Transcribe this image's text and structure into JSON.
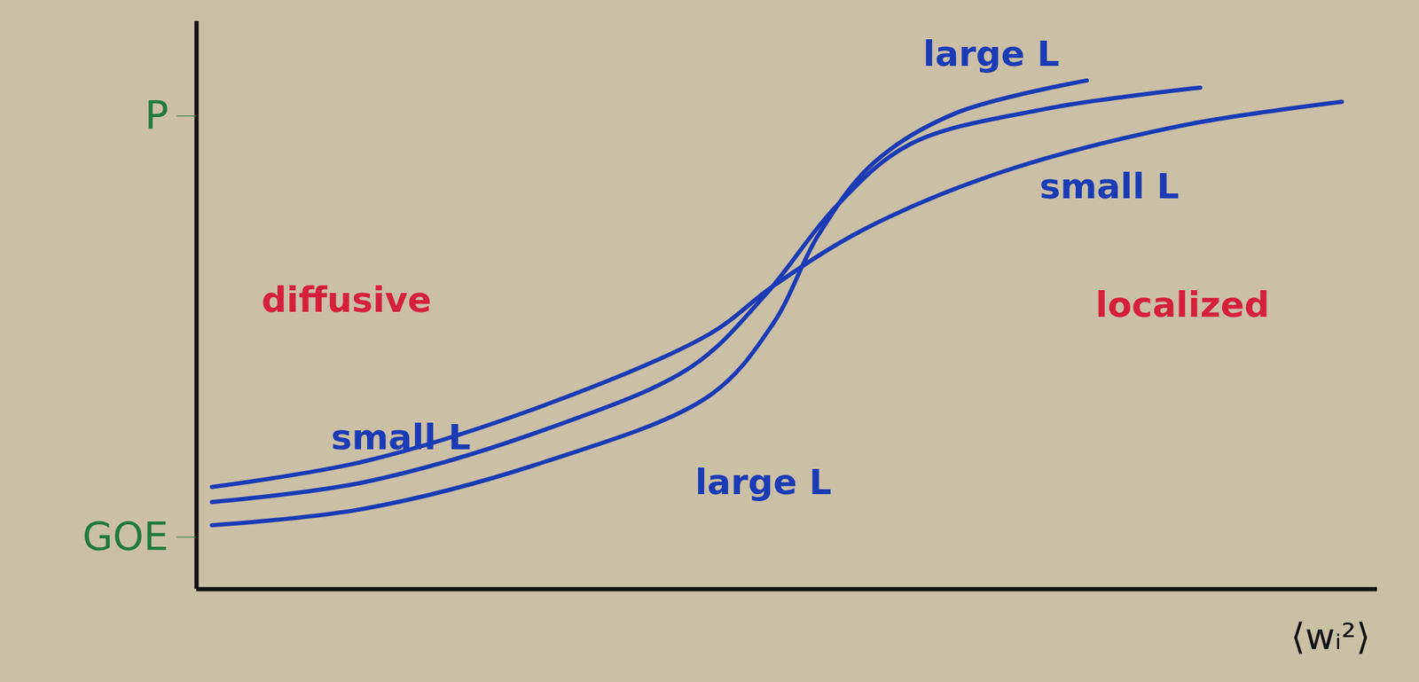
{
  "chart_data": {
    "type": "line",
    "x_label": "⟨wᵢ²⟩",
    "xlim": [
      0,
      10
    ],
    "ylim": [
      0,
      1.2
    ],
    "yticks": [
      {
        "value": 0.11,
        "label": "GOE"
      },
      {
        "value": 1.0,
        "label": "P"
      }
    ],
    "tick_labels": "y",
    "grid": false,
    "series": [
      {
        "color": "#1a3bb5",
        "x": [
          0.13,
          1.42,
          2.96,
          4.35,
          4.88,
          5.65,
          6.8,
          8.35,
          9.7
        ],
        "values": [
          0.216,
          0.27,
          0.39,
          0.54,
          0.64,
          0.76,
          0.88,
          0.98,
          1.03
        ]
      },
      {
        "color": "#1a3bb5",
        "x": [
          0.13,
          1.42,
          2.96,
          4.19,
          4.81,
          5.42,
          6.04,
          7.19,
          8.5
        ],
        "values": [
          0.184,
          0.226,
          0.338,
          0.47,
          0.62,
          0.81,
          0.94,
          1.015,
          1.06
        ]
      },
      {
        "color": "#1a3bb5",
        "x": [
          0.13,
          1.42,
          2.96,
          4.35,
          4.88,
          5.27,
          5.73,
          6.42,
          7.54
        ],
        "values": [
          0.135,
          0.17,
          0.27,
          0.41,
          0.56,
          0.75,
          0.9,
          1.005,
          1.075
        ]
      }
    ],
    "annotations": [
      {
        "text": "diffusive",
        "x": 1.27,
        "y": 0.61,
        "color": "#d6203a"
      },
      {
        "text": "localized",
        "x": 8.35,
        "y": 0.6,
        "color": "#d6203a"
      },
      {
        "text": "small L",
        "x": 1.73,
        "y": 0.32,
        "color": "#1a3bb5"
      },
      {
        "text": "large L",
        "x": 4.8,
        "y": 0.225,
        "color": "#1a3bb5"
      },
      {
        "text": "large L",
        "x": 6.73,
        "y": 1.13,
        "color": "#1a3bb5"
      },
      {
        "text": "small L",
        "x": 7.73,
        "y": 0.85,
        "color": "#1a3bb5"
      }
    ]
  }
}
